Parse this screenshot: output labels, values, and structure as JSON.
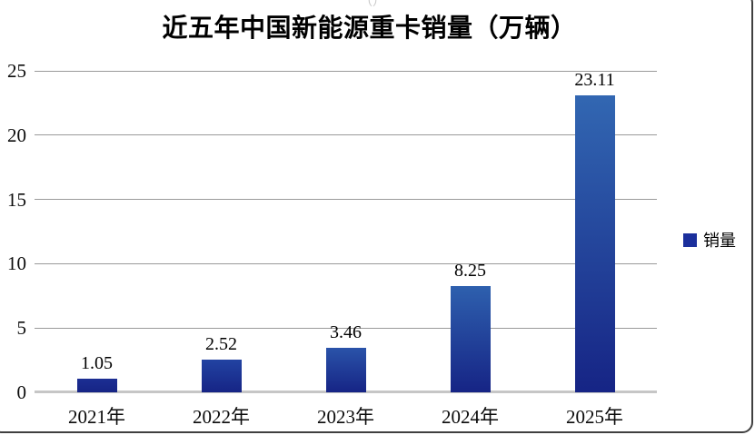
{
  "title": "近五年中国新能源重卡销量（万辆）",
  "cropped_fragment": "（）",
  "legend": {
    "label": "销量",
    "marker_color": "#1b2f9c"
  },
  "chart_data": {
    "type": "bar",
    "title": "近五年中国新能源重卡销量（万辆）",
    "categories": [
      "2021年",
      "2022年",
      "2023年",
      "2024年",
      "2025年"
    ],
    "values": [
      1.05,
      2.52,
      3.46,
      8.25,
      23.11
    ],
    "data_labels": [
      "1.05",
      "2.52",
      "3.46",
      "8.25",
      "23.11"
    ],
    "series_name": "销量",
    "xlabel": "",
    "ylabel": "",
    "ylim": [
      0,
      25
    ],
    "yticks": [
      0,
      5,
      10,
      15,
      20,
      25
    ],
    "grid": true,
    "legend_position": "right",
    "bar_base_color": "#162485",
    "bar_top_colors": [
      "#1c2e93",
      "#2243a2",
      "#2a53a9",
      "#2e60ae",
      "#3267b2"
    ],
    "gridline_color": "#9a9a9a",
    "baseline_color": "#c6c6c6"
  }
}
